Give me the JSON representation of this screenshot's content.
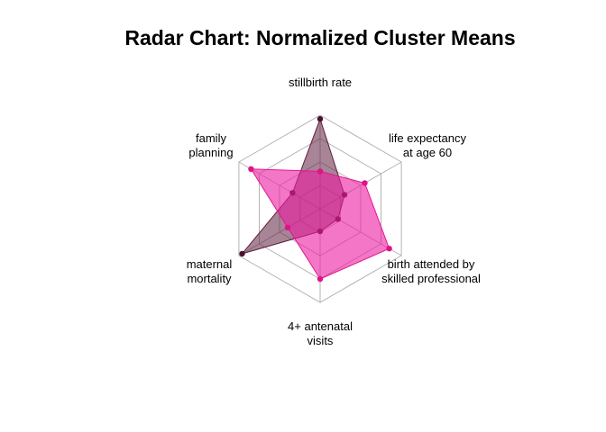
{
  "chart_data": {
    "type": "radar",
    "title": "Radar Chart: Normalized Cluster Means",
    "axes": [
      [
        "stillbirth rate"
      ],
      [
        "life expectancy",
        "at age 60"
      ],
      [
        "birth attended by",
        "skilled professional"
      ],
      [
        "4+ antenatal",
        "visits"
      ],
      [
        "maternal",
        "mortality"
      ],
      [
        "family",
        "planning"
      ]
    ],
    "range": [
      0,
      1
    ],
    "grid_levels": 4,
    "series": [
      {
        "values": [
          0.96,
          0.3,
          0.22,
          0.24,
          0.96,
          0.34
        ],
        "fill": "#5e1f3f",
        "fill_opacity": 0.55,
        "stroke": "#5e1f3f",
        "point_color": "#4a1230"
      },
      {
        "values": [
          0.4,
          0.55,
          0.85,
          0.75,
          0.4,
          0.85
        ],
        "fill": "#ec1ba0",
        "fill_opacity": 0.6,
        "stroke": "#e0188f",
        "point_color": "#e0128a"
      }
    ],
    "grid_color": "#b3b3b3",
    "axis_color": "#b3b3b3"
  }
}
